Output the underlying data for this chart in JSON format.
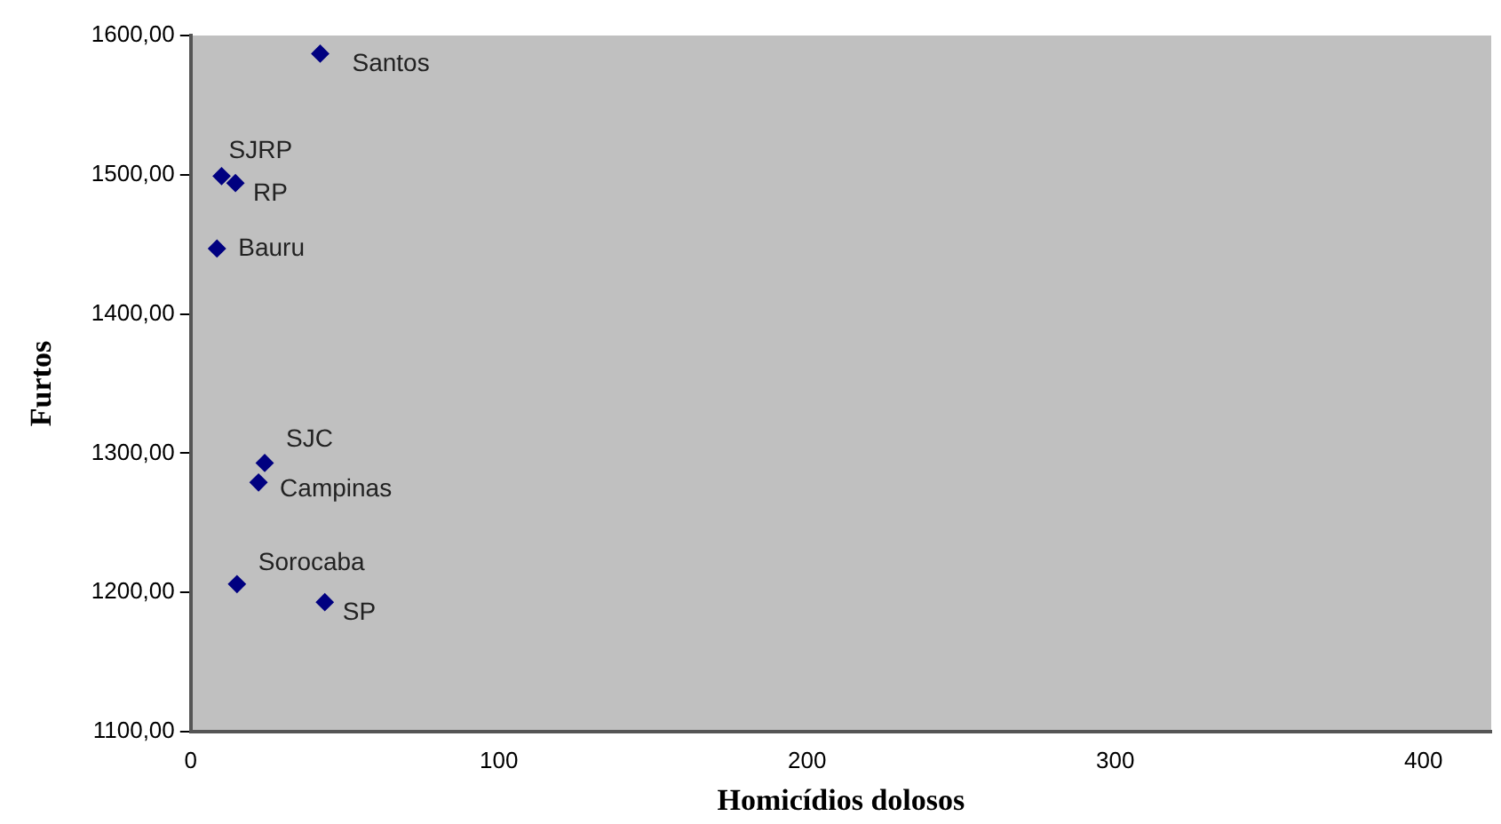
{
  "chart_data": {
    "type": "scatter",
    "xlabel": "Homicídios dolosos",
    "ylabel": "Furtos",
    "series": [
      {
        "color": "#000080",
        "x": [
          42,
          10,
          14.5,
          8.5,
          24,
          22,
          15,
          43.5
        ],
        "values": [
          1587,
          1499,
          1494,
          1447,
          1293,
          1279,
          1206,
          1193
        ]
      }
    ],
    "annotations": [
      {
        "text": "Santos",
        "x": 42,
        "y": 1587
      },
      {
        "text": "SJRP",
        "x": 10,
        "y": 1499
      },
      {
        "text": "RP",
        "x": 14.5,
        "y": 1494
      },
      {
        "text": "Bauru",
        "x": 8.5,
        "y": 1447
      },
      {
        "text": "SJC",
        "x": 24,
        "y": 1293
      },
      {
        "text": "Campinas",
        "x": 22,
        "y": 1279
      },
      {
        "text": "Sorocaba",
        "x": 15,
        "y": 1206
      },
      {
        "text": "SP",
        "x": 43.5,
        "y": 1193
      }
    ],
    "xlim": [
      0,
      422
    ],
    "xticks": [
      0,
      100,
      200,
      300,
      400
    ],
    "ylim": [
      1100,
      1600
    ],
    "yticks": [
      {
        "value": 1100,
        "label": "1100,00"
      },
      {
        "value": 1200,
        "label": "1200,00"
      },
      {
        "value": 1300,
        "label": "1300,00"
      },
      {
        "value": 1400,
        "label": "1400,00"
      },
      {
        "value": 1500,
        "label": "1500,00"
      },
      {
        "value": 1600,
        "label": "1600,00"
      }
    ],
    "marker": "diamond",
    "grid": false,
    "legend": false
  }
}
